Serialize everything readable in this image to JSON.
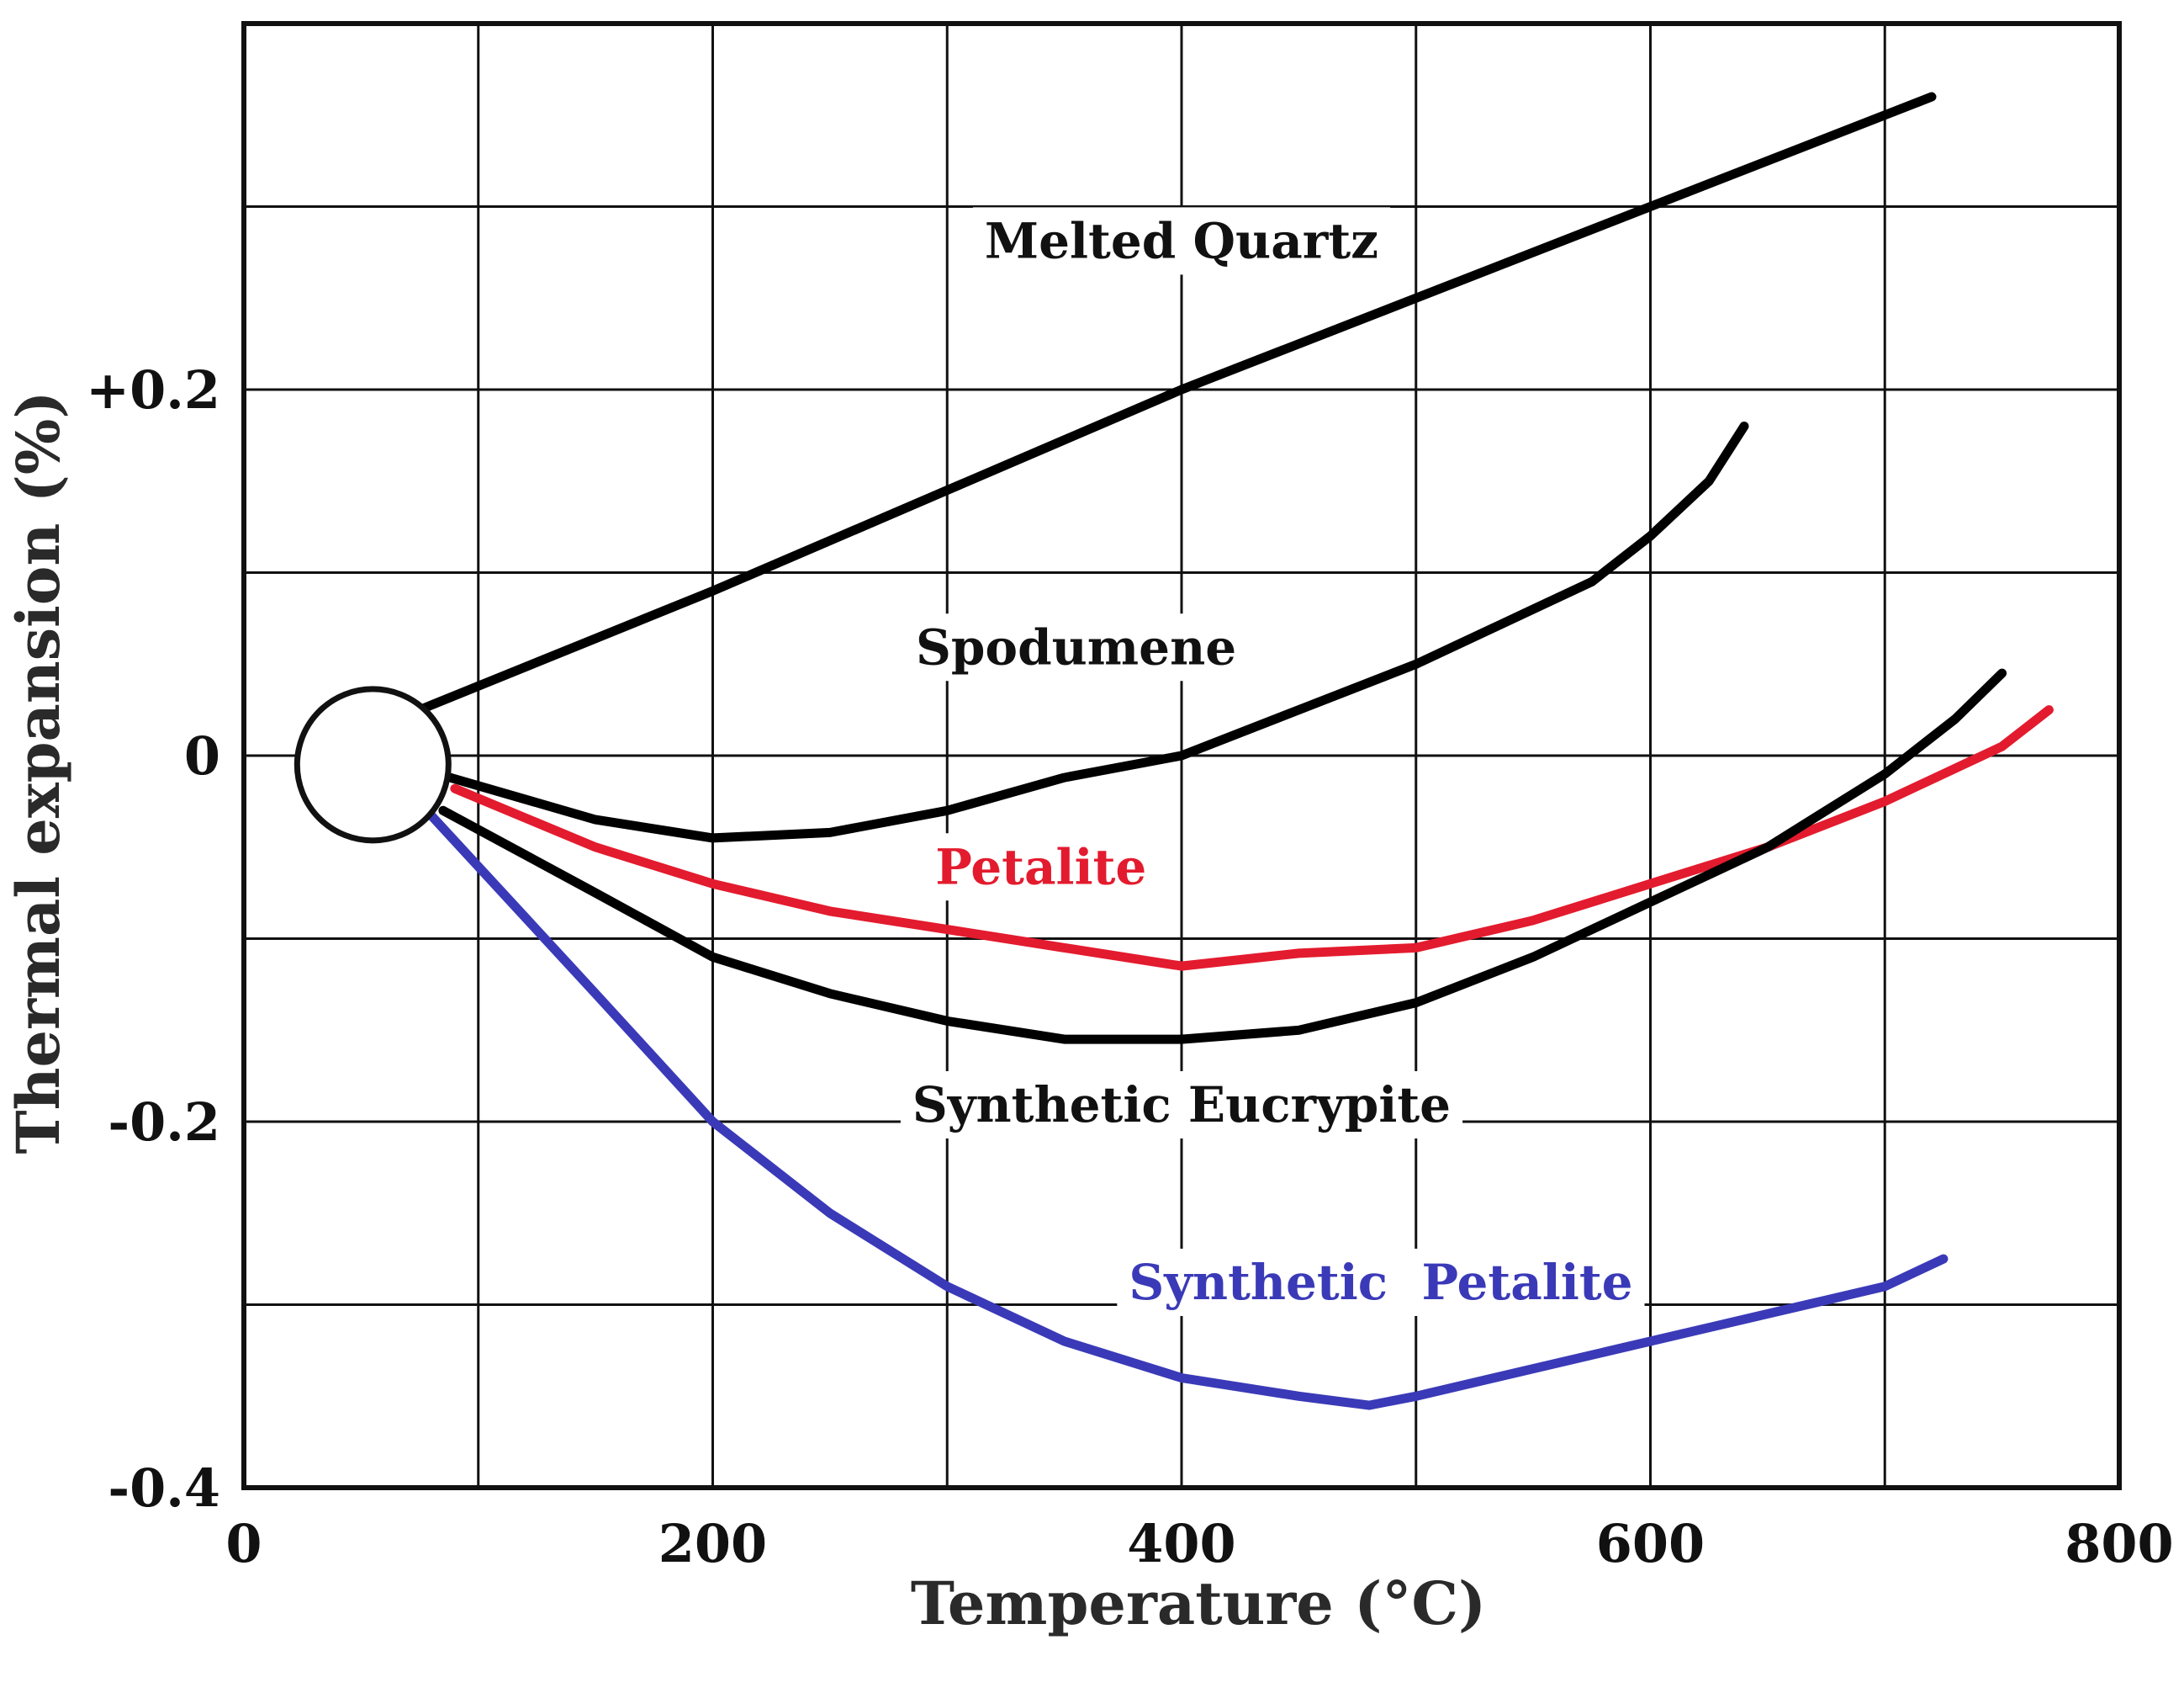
{
  "chart_data": {
    "type": "line",
    "title": "",
    "xlabel": "Temperature (°C)",
    "ylabel": "Thermal expansion (%)",
    "xlim": [
      0,
      800
    ],
    "ylim": [
      -0.4,
      0.4
    ],
    "grid": true,
    "x_ticks": [
      0,
      200,
      400,
      600,
      800
    ],
    "x_tick_labels": [
      "0",
      "200",
      "400",
      "600",
      "800"
    ],
    "y_ticks": [
      0.2,
      0,
      -0.2,
      -0.4
    ],
    "y_tick_labels": [
      "+0.2",
      "0",
      "-0.2",
      "-0.4"
    ],
    "x_grid": [
      100,
      200,
      300,
      400,
      500,
      600,
      700
    ],
    "y_grid": [
      0.3,
      0.2,
      0.1,
      0.0,
      -0.1,
      -0.2,
      -0.3
    ],
    "origin_marker": {
      "x": 55,
      "y": -0.005
    },
    "series": [
      {
        "name": "Melted Quartz",
        "color": "#000000",
        "x": [
          75,
          200,
          300,
          400,
          500,
          600,
          700,
          720
        ],
        "y": [
          0.025,
          0.09,
          0.145,
          0.2,
          0.25,
          0.3,
          0.35,
          0.36
        ]
      },
      {
        "name": "Spodumene",
        "color": "#000000",
        "x": [
          88,
          150,
          200,
          250,
          300,
          350,
          400,
          450,
          500,
          550,
          575,
          600,
          625,
          640
        ],
        "y": [
          -0.012,
          -0.035,
          -0.045,
          -0.042,
          -0.03,
          -0.012,
          0.0,
          0.025,
          0.05,
          0.08,
          0.095,
          0.12,
          0.15,
          0.18
        ]
      },
      {
        "name": "Petalite",
        "color": "#e31b2e",
        "x": [
          90,
          150,
          200,
          250,
          300,
          350,
          400,
          450,
          500,
          550,
          600,
          650,
          700,
          750,
          770
        ],
        "y": [
          -0.018,
          -0.05,
          -0.07,
          -0.085,
          -0.095,
          -0.105,
          -0.115,
          -0.108,
          -0.105,
          -0.09,
          -0.07,
          -0.05,
          -0.025,
          0.005,
          0.025
        ]
      },
      {
        "name": "Synthetic Eucrypite",
        "color": "#000000",
        "x": [
          85,
          150,
          200,
          250,
          300,
          350,
          400,
          450,
          500,
          550,
          600,
          650,
          700,
          730,
          750
        ],
        "y": [
          -0.03,
          -0.075,
          -0.11,
          -0.13,
          -0.145,
          -0.155,
          -0.155,
          -0.15,
          -0.135,
          -0.11,
          -0.08,
          -0.05,
          -0.01,
          0.02,
          0.045
        ]
      },
      {
        "name": "Synthetic Petalite",
        "color": "#3a3ab8",
        "x": [
          78,
          150,
          200,
          250,
          300,
          350,
          400,
          450,
          480,
          500,
          550,
          600,
          650,
          700,
          725
        ],
        "y": [
          -0.03,
          -0.13,
          -0.2,
          -0.25,
          -0.29,
          -0.32,
          -0.34,
          -0.35,
          -0.355,
          -0.35,
          -0.335,
          -0.32,
          -0.305,
          -0.29,
          -0.275
        ]
      }
    ],
    "annotations": [
      {
        "text": "Melted Quartz",
        "x": 400,
        "y": 0.272,
        "color": "#111111"
      },
      {
        "text": "Spodumene",
        "x": 355,
        "y": 0.05,
        "color": "#111111"
      },
      {
        "text": "Petalite",
        "x": 340,
        "y": -0.07,
        "color": "#e31b2e"
      },
      {
        "text": "Synthetic Eucrypite",
        "x": 400,
        "y": -0.2,
        "color": "#111111"
      },
      {
        "text": "Synthetic  Petalite",
        "x": 485,
        "y": -0.297,
        "color": "#3a3ab8"
      }
    ]
  }
}
